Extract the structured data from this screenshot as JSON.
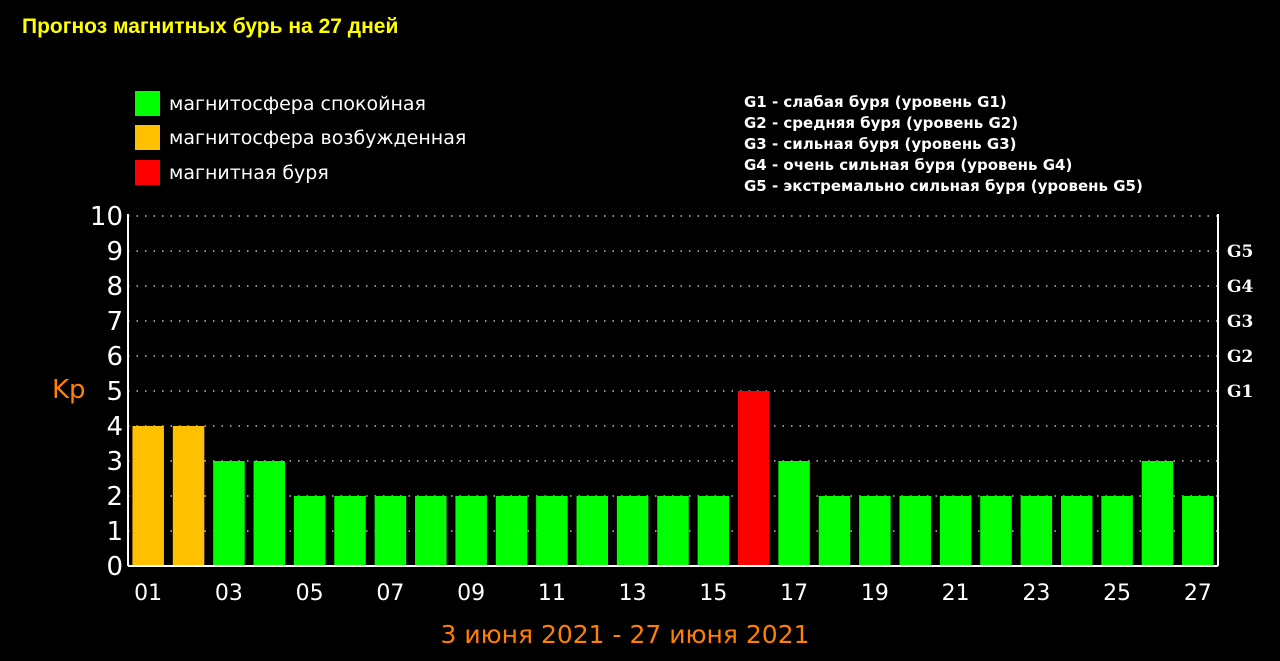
{
  "title": "Прогноз магнитных бурь на 27 дней",
  "legend": [
    {
      "label": "магнитосфера спокойная",
      "color": "#00ff00"
    },
    {
      "label": "магнитосфера возбужденная",
      "color": "#ffc000"
    },
    {
      "label": "магнитная буря",
      "color": "#ff0000"
    }
  ],
  "storm_levels": [
    "G1 - слабая буря (уровень G1)",
    "G2 - средняя буря (уровень G2)",
    "G3 - сильная буря (уровень G3)",
    "G4 - очень сильная буря (уровень G4)",
    "G5 - экстремально сильная буря (уровень G5)"
  ],
  "colors": {
    "background": "#000000",
    "title": "#ffff00",
    "axis_text": "#ffffff",
    "accent": "#ff8000",
    "calm": "#00ff00",
    "excited": "#ffc000",
    "storm": "#ff0000"
  },
  "chart_data": {
    "type": "bar",
    "title": "Прогноз магнитных бурь на 27 дней",
    "ylabel": "Kp",
    "xlabel": "3 июня 2021 - 27 июня 2021",
    "ylim": [
      0,
      10
    ],
    "yticks": [
      "0",
      "1",
      "2",
      "3",
      "4",
      "5",
      "6",
      "7",
      "8",
      "9",
      "10"
    ],
    "right_ticks": [
      {
        "label": "G1",
        "value": 5
      },
      {
        "label": "G2",
        "value": 6
      },
      {
        "label": "G3",
        "value": 7
      },
      {
        "label": "G4",
        "value": 8
      },
      {
        "label": "G5",
        "value": 9
      }
    ],
    "grid": true,
    "categories": [
      "01",
      "02",
      "03",
      "04",
      "05",
      "06",
      "07",
      "08",
      "09",
      "10",
      "11",
      "12",
      "13",
      "14",
      "15",
      "16",
      "17",
      "18",
      "19",
      "20",
      "21",
      "22",
      "23",
      "24",
      "25",
      "26",
      "27"
    ],
    "xtick_labels": [
      "01",
      "03",
      "05",
      "07",
      "09",
      "11",
      "13",
      "15",
      "17",
      "19",
      "21",
      "23",
      "25",
      "27"
    ],
    "values": [
      4,
      4,
      3,
      3,
      2,
      2,
      2,
      2,
      2,
      2,
      2,
      2,
      2,
      2,
      2,
      5,
      3,
      2,
      2,
      2,
      2,
      2,
      2,
      2,
      2,
      3,
      2
    ],
    "levels": [
      "excited",
      "excited",
      "calm",
      "calm",
      "calm",
      "calm",
      "calm",
      "calm",
      "calm",
      "calm",
      "calm",
      "calm",
      "calm",
      "calm",
      "calm",
      "storm",
      "calm",
      "calm",
      "calm",
      "calm",
      "calm",
      "calm",
      "calm",
      "calm",
      "calm",
      "calm",
      "calm"
    ]
  }
}
